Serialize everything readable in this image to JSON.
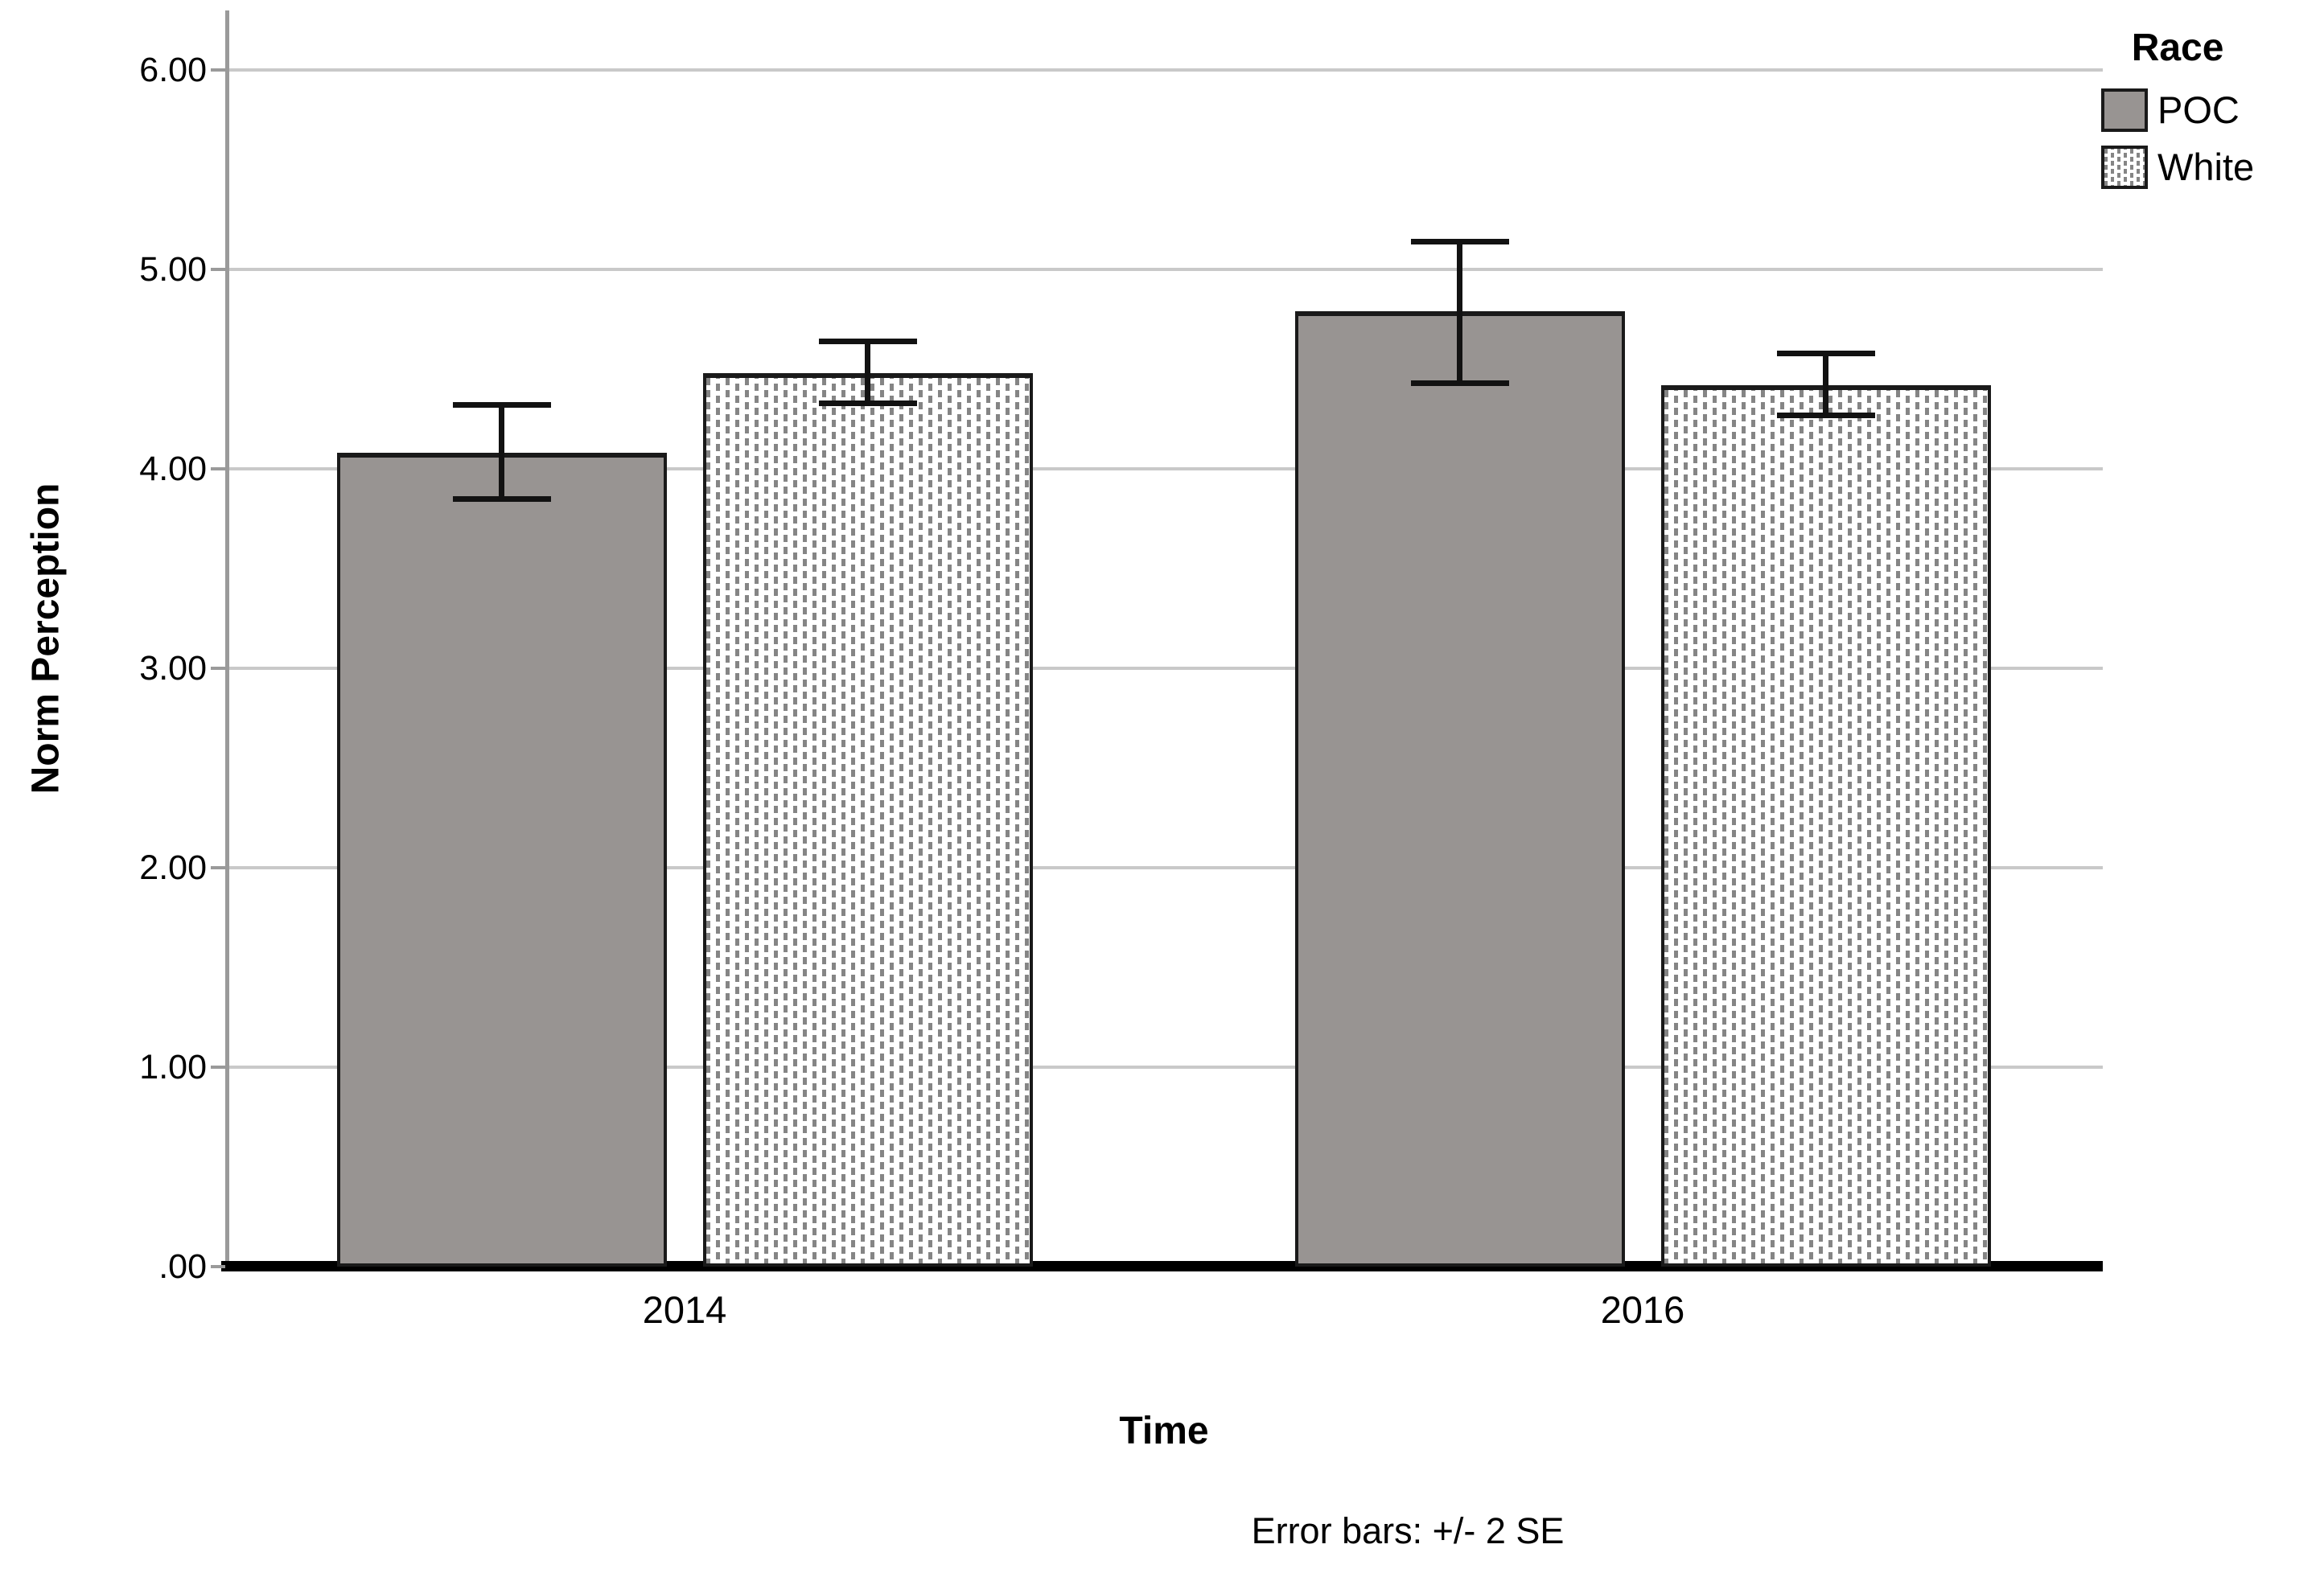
{
  "chart_data": {
    "type": "bar",
    "title": "",
    "categories": [
      "2014",
      "2016"
    ],
    "series": [
      {
        "name": "POC",
        "values": [
          4.08,
          4.79
        ],
        "err_lo": [
          3.85,
          4.43
        ],
        "err_hi": [
          4.32,
          5.14
        ],
        "fill": "solid"
      },
      {
        "name": "White",
        "values": [
          4.48,
          4.42
        ],
        "err_lo": [
          4.33,
          4.27
        ],
        "err_hi": [
          4.64,
          4.58
        ],
        "fill": "pattern"
      }
    ],
    "xlabel": "Time",
    "ylabel": "Norm Perception",
    "ylim": [
      0,
      6.3
    ],
    "yticks": [
      {
        "value": 0,
        "label": ".00"
      },
      {
        "value": 1,
        "label": "1.00"
      },
      {
        "value": 2,
        "label": "2.00"
      },
      {
        "value": 3,
        "label": "3.00"
      },
      {
        "value": 4,
        "label": "4.00"
      },
      {
        "value": 5,
        "label": "5.00"
      },
      {
        "value": 6,
        "label": "6.00"
      }
    ],
    "legend_title": "Race",
    "legend_position": "top-right",
    "grid": "horizontal",
    "footnote": "Error bars: +/- 2 SE",
    "error_bar_meaning": "+/- 2 SE"
  },
  "colors": {
    "poc_fill": "#989492",
    "white_pattern_dash": "#858585",
    "bar_border": "#1a1a1a",
    "gridline": "#c9c9c9",
    "axis_line": "#9a9a9a",
    "baseline": "#000000",
    "text": "#000000"
  }
}
